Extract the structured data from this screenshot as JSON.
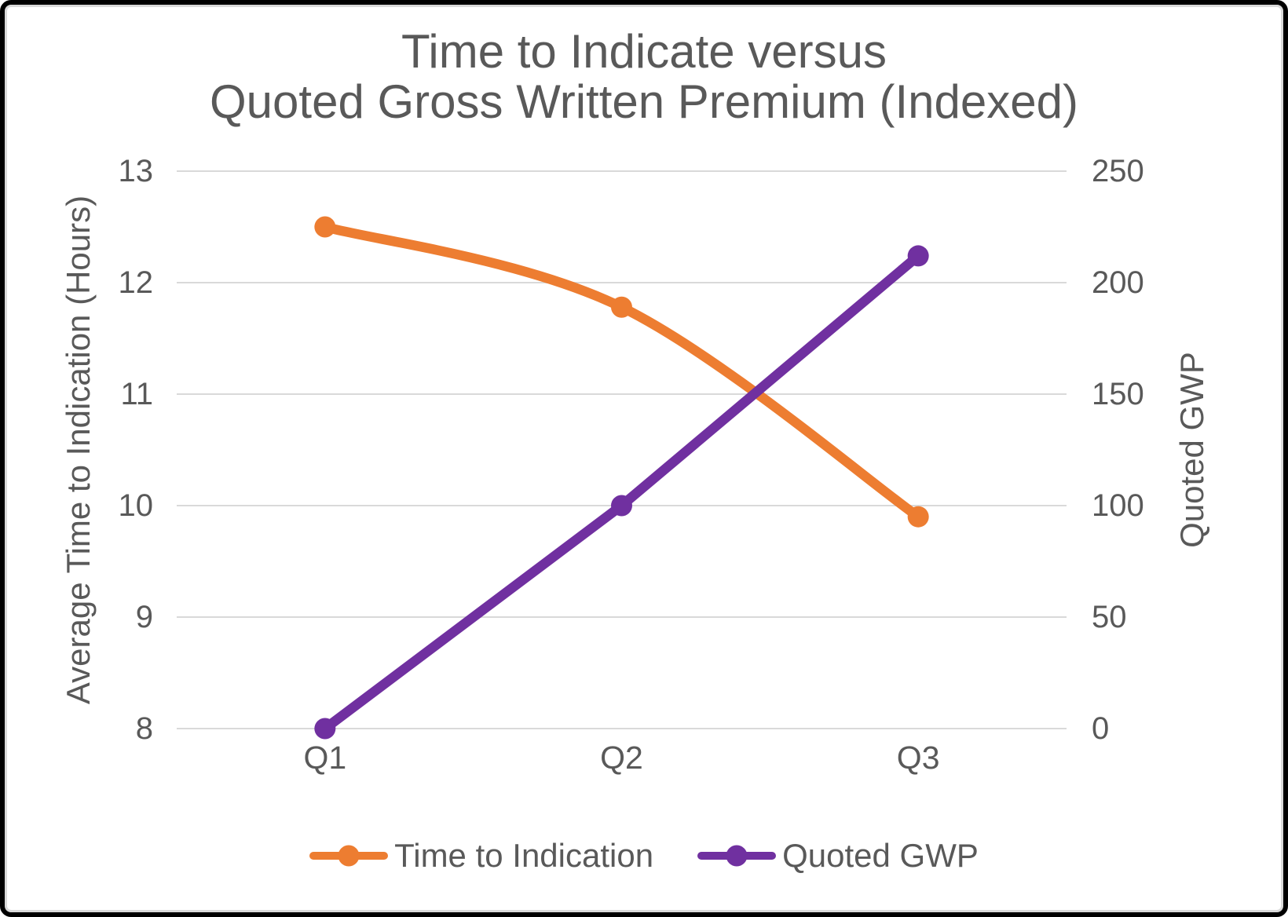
{
  "title": {
    "line1": "Time to Indicate versus",
    "line2": "Quoted Gross Written Premium (Indexed)"
  },
  "colors": {
    "text": "#595959",
    "gridline": "#D9D9D9",
    "background": "#FFFFFF",
    "frame": "#000000"
  },
  "chart_data": {
    "type": "line",
    "title": "Time to Indicate versus Quoted Gross Written Premium (Indexed)",
    "categories": [
      "Q1",
      "Q2",
      "Q3"
    ],
    "series": [
      {
        "name": "Time to Indication",
        "axis": "left",
        "color": "#ED7D31",
        "values": [
          12.5,
          11.78,
          9.9
        ],
        "smooth": true
      },
      {
        "name": "Quoted GWP",
        "axis": "right",
        "color": "#7030A0",
        "values": [
          0,
          100,
          212
        ],
        "smooth": false
      }
    ],
    "left_axis": {
      "label": "Average Time to Indication (Hours)",
      "min": 8,
      "max": 13,
      "ticks": [
        13,
        12,
        11,
        10,
        9,
        8
      ]
    },
    "right_axis": {
      "label": "Quoted GWP",
      "min": 0,
      "max": 250,
      "ticks": [
        250,
        200,
        150,
        100,
        50,
        0
      ]
    },
    "grid": true,
    "legend_position": "bottom"
  }
}
